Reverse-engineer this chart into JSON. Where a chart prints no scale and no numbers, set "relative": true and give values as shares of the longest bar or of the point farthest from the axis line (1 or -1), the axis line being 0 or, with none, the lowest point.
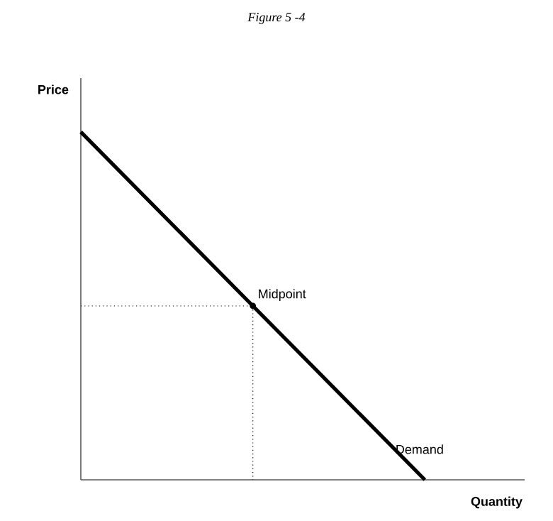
{
  "chart_data": {
    "type": "line",
    "title": "Figure 5 -4",
    "xlabel": "Quantity",
    "ylabel": "Price",
    "relative": true,
    "categories": [
      null,
      null,
      null
    ],
    "series": [
      {
        "name": "Demand",
        "color": "#000000",
        "values": [
          1,
          0.5,
          0
        ]
      },
      {
        "color": "#000000",
        "values": [
          0.5,
          0.5,
          null
        ],
        "line_style": "dotted"
      }
    ],
    "annotations": [
      "Midpoint"
    ]
  }
}
